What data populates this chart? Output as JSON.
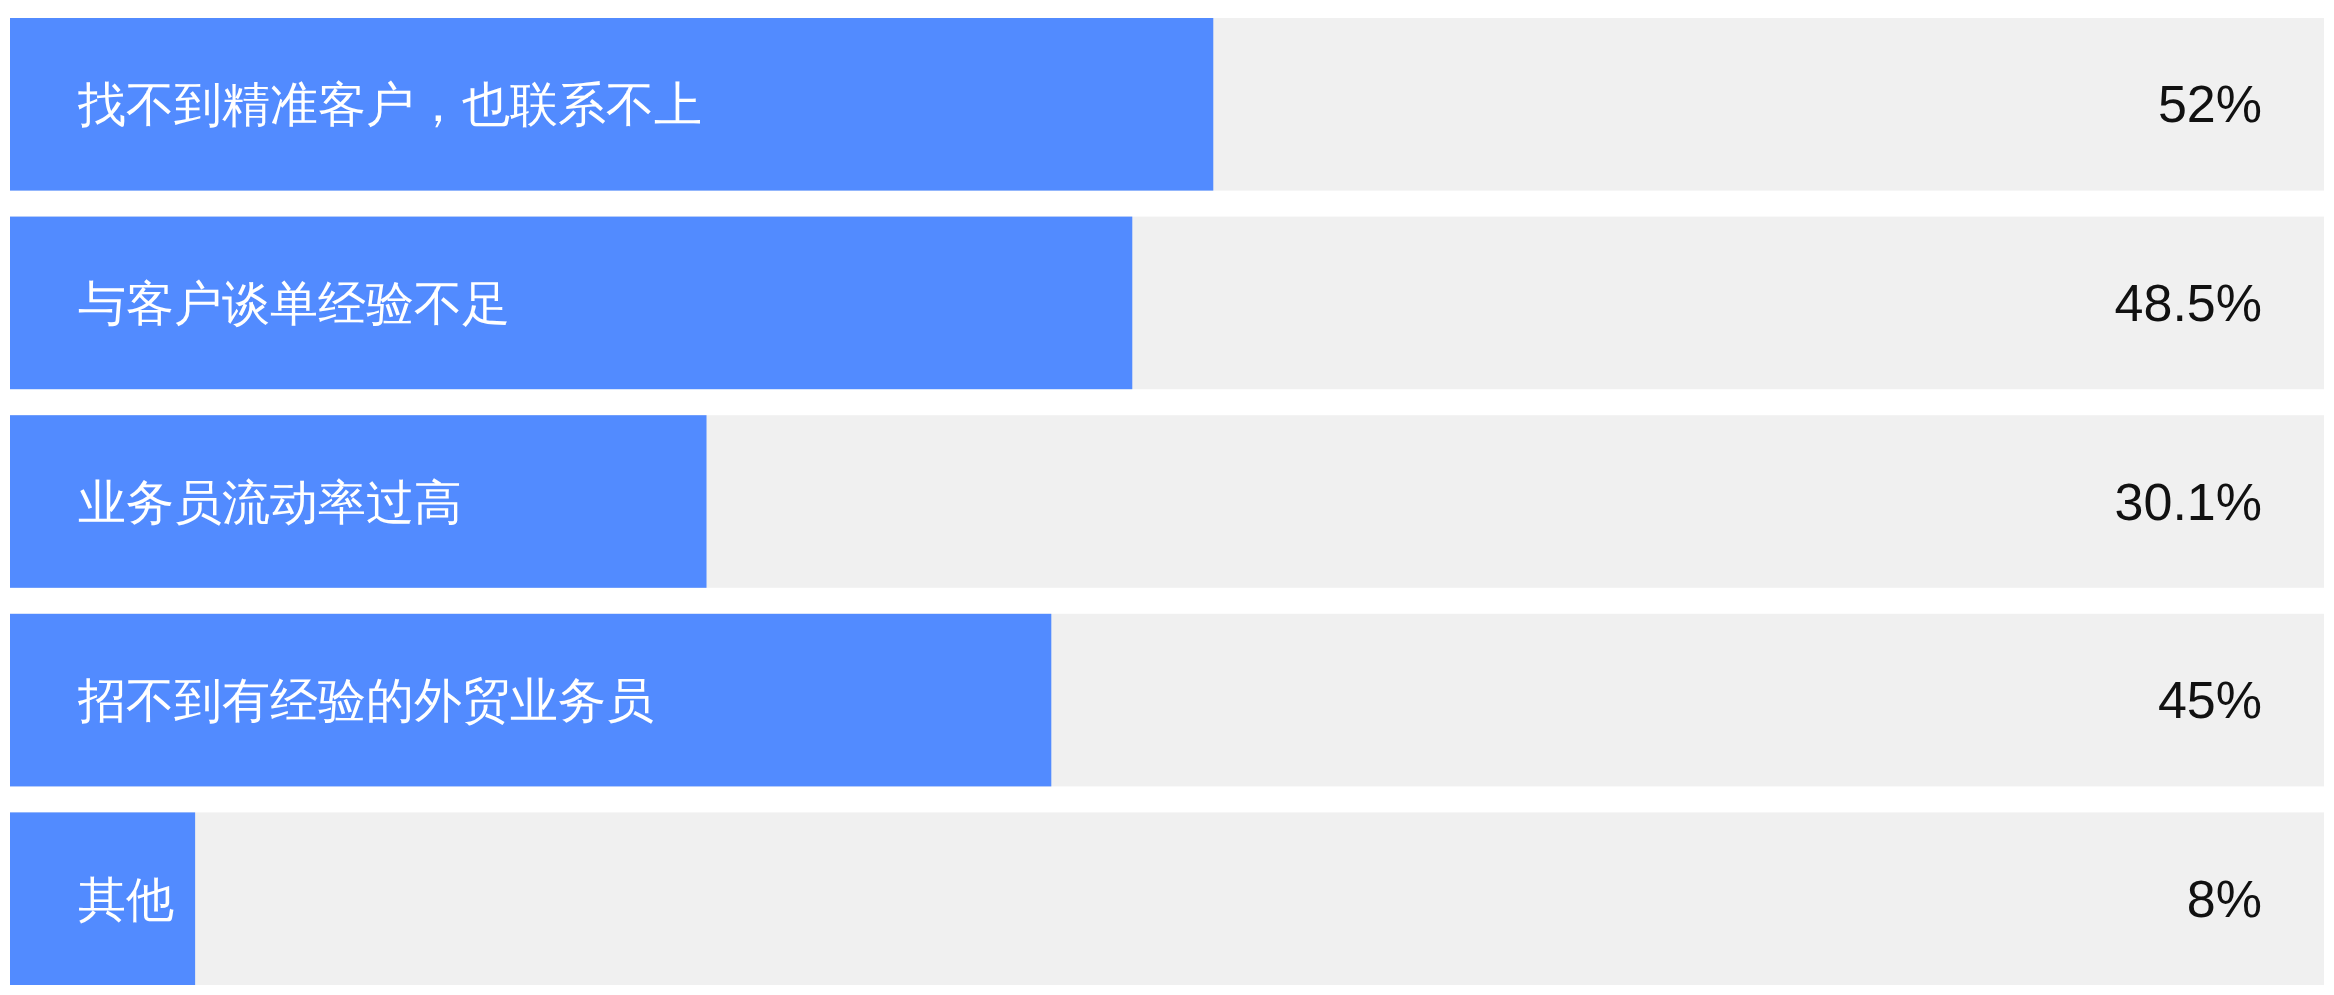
{
  "chart_data": {
    "type": "bar",
    "orientation": "horizontal",
    "xlim": [
      0,
      100
    ],
    "color": "#528bff",
    "categories": [
      "找不到精准客户，也联系不上",
      "与客户谈单经验不足",
      "业务员流动率过高",
      "招不到有经验的外贸业务员",
      "其他"
    ],
    "values": [
      52,
      48.5,
      30.1,
      45,
      8
    ],
    "value_labels": [
      "52%",
      "48.5%",
      "30.1%",
      "45%",
      "8%"
    ]
  }
}
